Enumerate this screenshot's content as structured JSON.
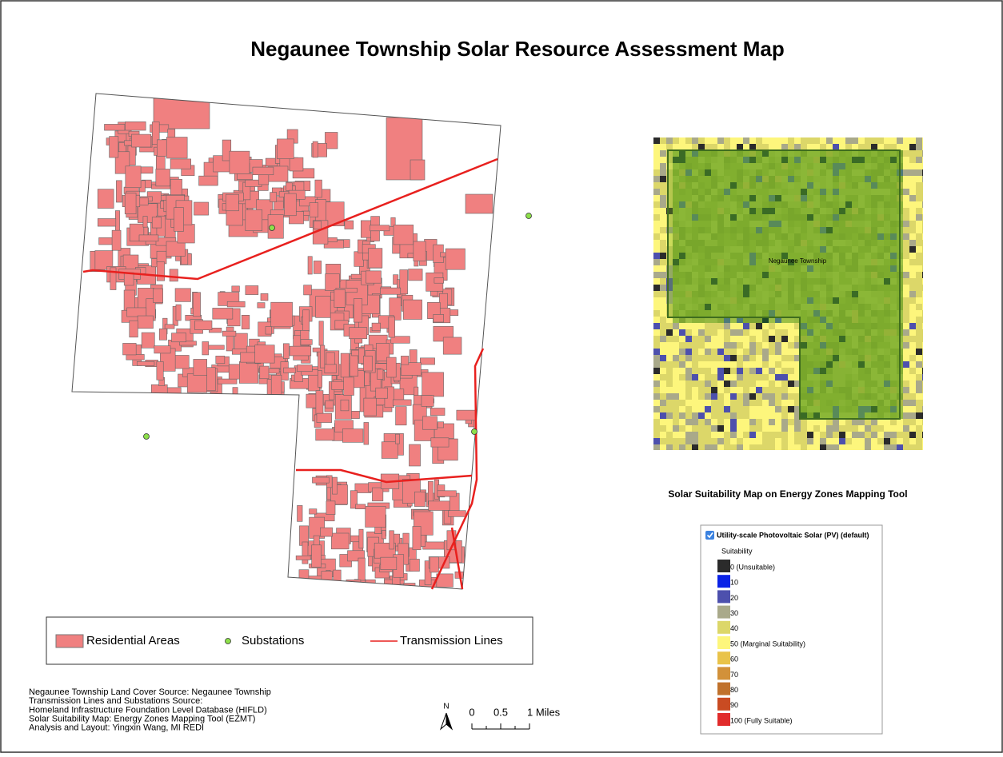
{
  "title": "Negaunee Township Solar Resource Assessment Map",
  "legend": {
    "items": [
      "Residential Areas",
      "Substations",
      "Transmission Lines"
    ]
  },
  "inset": {
    "township_label": "Negaunee Township",
    "caption": "Solar Suitability Map on Energy Zones Mapping Tool"
  },
  "suitability_legend": {
    "title": "Utility-scale Photovoltaic Solar (PV) (default)",
    "subtitle": "Suitability",
    "entries": [
      {
        "label": "0 (Unsuitable)",
        "color": "#2b2b2b"
      },
      {
        "label": "10",
        "color": "#0a22e6"
      },
      {
        "label": "20",
        "color": "#4d50ad"
      },
      {
        "label": "30",
        "color": "#a9a98a"
      },
      {
        "label": "40",
        "color": "#dcd769"
      },
      {
        "label": "50 (Marginal Suitability)",
        "color": "#fdf67c"
      },
      {
        "label": "60",
        "color": "#e9c34a"
      },
      {
        "label": "70",
        "color": "#d2913a"
      },
      {
        "label": "80",
        "color": "#c0712b"
      },
      {
        "label": "90",
        "color": "#c94b22"
      },
      {
        "label": "100 (Fully Suitable)",
        "color": "#e12b2b"
      }
    ]
  },
  "sources": [
    "Negaunee Township Land Cover Source: Negaunee Township",
    "Transmission Lines and Substations Source:",
    "Homeland Infrastructure Foundation Level Database (HIFLD)",
    "Solar Suitability Map: Energy Zones Mapping Tool (EZMT)",
    "Analysis and Layout: Yingxin Wang, MI REDI"
  ],
  "north": "N",
  "scale": [
    "0",
    "0.5",
    "1 Miles"
  ]
}
